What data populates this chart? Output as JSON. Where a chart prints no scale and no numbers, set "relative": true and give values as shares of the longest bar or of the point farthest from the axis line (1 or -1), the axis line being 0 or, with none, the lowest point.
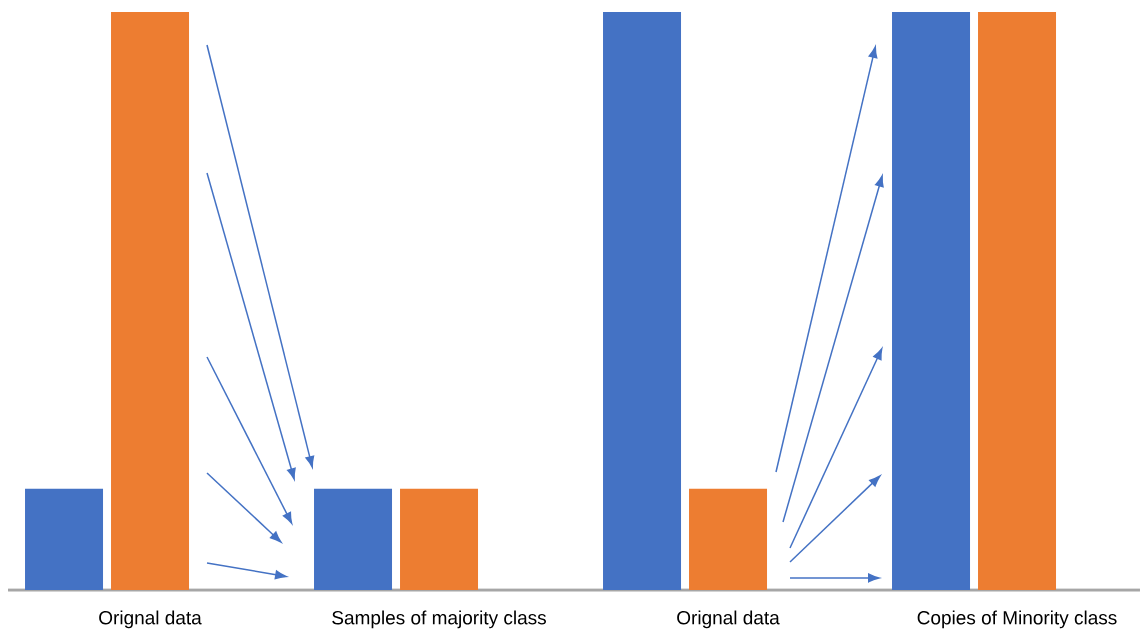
{
  "chart_data": {
    "type": "bar",
    "relative": true,
    "categories": [
      "Orignal data",
      "Samples of majority class",
      "Orignal data",
      "Copies of Minority class"
    ],
    "series": [
      {
        "color": "#4472c4",
        "values": [
          0.175,
          0.175,
          1,
          1
        ]
      },
      {
        "color": "#ed7d31",
        "values": [
          1,
          0.175,
          0.175,
          1
        ]
      }
    ]
  }
}
